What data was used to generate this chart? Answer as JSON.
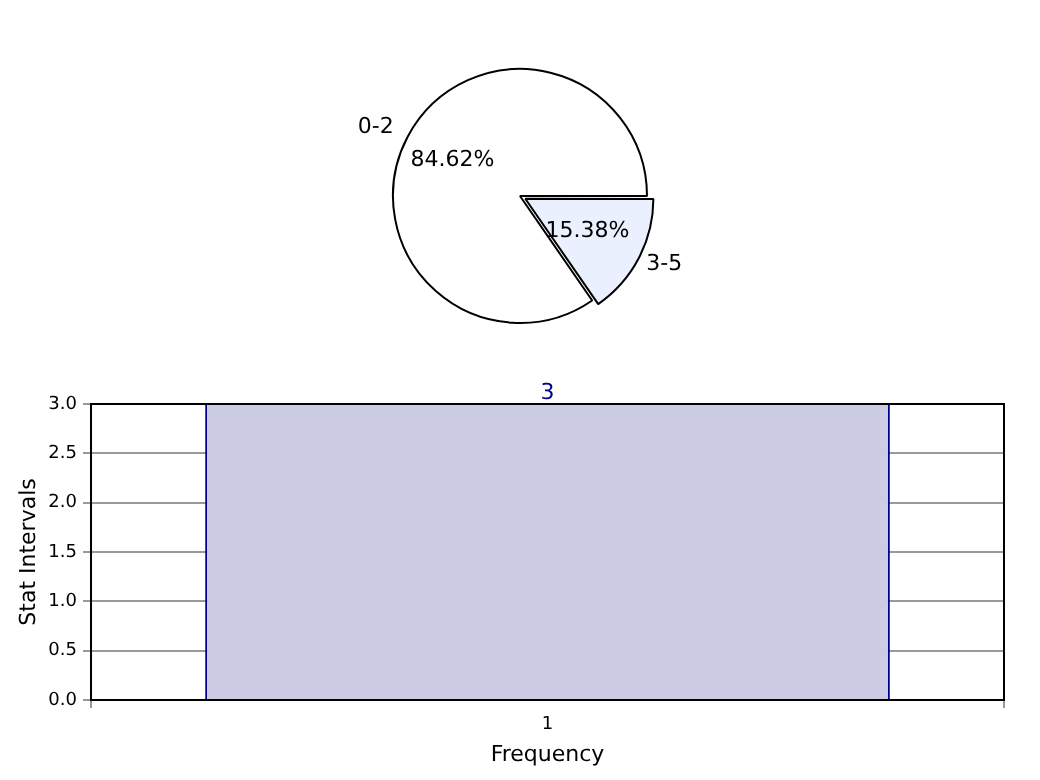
{
  "chart_data": [
    {
      "type": "pie",
      "categories": [
        "0-2",
        "3-5"
      ],
      "values": [
        84.62,
        15.38
      ],
      "colors": [
        "#ffffff",
        "#eaf0fd"
      ],
      "value_labels": [
        "84.62%",
        "15.38%"
      ],
      "legend": false
    },
    {
      "type": "bar",
      "categories": [
        "1"
      ],
      "values": [
        3
      ],
      "color": "#cccce4",
      "xlabel": "Frequency",
      "ylabel": "Stat Intervals",
      "ylim": [
        0,
        3
      ],
      "yticks": [
        {
          "value": 0,
          "label": "0.0"
        },
        {
          "value": 0.5,
          "label": "0.5"
        },
        {
          "value": 1,
          "label": "1.0"
        },
        {
          "value": 1.5,
          "label": "1.5"
        },
        {
          "value": 2,
          "label": "2.0"
        },
        {
          "value": 2.5,
          "label": "2.5"
        },
        {
          "value": 3,
          "label": "3.0"
        }
      ],
      "grid": true,
      "data_labels": true,
      "legend": false
    }
  ]
}
